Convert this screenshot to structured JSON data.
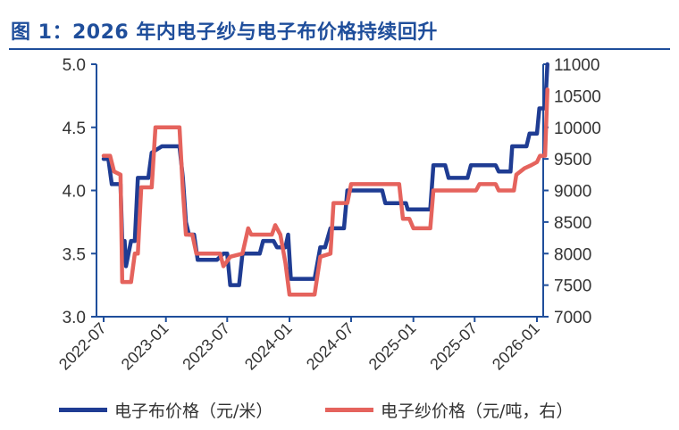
{
  "title": "图 1：2026 年内电子纱与电子布价格持续回升",
  "chart_data": {
    "type": "line",
    "x_axis": {
      "ticks": [
        "2022-07",
        "2023-01",
        "2023-07",
        "2024-01",
        "2024-07",
        "2025-01",
        "2025-07",
        "2026-01"
      ],
      "range": [
        "2022-07",
        "2026-01"
      ]
    },
    "y_left": {
      "range": [
        3.0,
        5.0
      ],
      "ticks": [
        "3.0",
        "3.5",
        "4.0",
        "4.5",
        "5.0"
      ]
    },
    "y_right": {
      "range": [
        7000,
        11000
      ],
      "ticks": [
        "7000",
        "7500",
        "8000",
        "8500",
        "9000",
        "9500",
        "10000",
        "10500",
        "11000"
      ]
    },
    "grid": false,
    "legend_position": "bottom",
    "series": [
      {
        "name": "电子布价格（元/米）",
        "axis": "left",
        "color": "#1f3c93",
        "points": [
          [
            "2022-07-01",
            4.25
          ],
          [
            "2022-07-15",
            4.25
          ],
          [
            "2022-07-25",
            4.05
          ],
          [
            "2022-08-20",
            4.05
          ],
          [
            "2022-08-25",
            3.6
          ],
          [
            "2022-09-01",
            3.6
          ],
          [
            "2022-09-05",
            3.4
          ],
          [
            "2022-09-20",
            3.6
          ],
          [
            "2022-10-01",
            3.6
          ],
          [
            "2022-10-10",
            4.1
          ],
          [
            "2022-11-10",
            4.1
          ],
          [
            "2022-11-20",
            4.3
          ],
          [
            "2022-12-20",
            4.35
          ],
          [
            "2023-02-10",
            4.35
          ],
          [
            "2023-02-20",
            4.1
          ],
          [
            "2023-03-01",
            3.75
          ],
          [
            "2023-03-10",
            3.65
          ],
          [
            "2023-03-25",
            3.65
          ],
          [
            "2023-04-05",
            3.45
          ],
          [
            "2023-06-01",
            3.45
          ],
          [
            "2023-06-20",
            3.5
          ],
          [
            "2023-07-01",
            3.5
          ],
          [
            "2023-07-10",
            3.25
          ],
          [
            "2023-08-05",
            3.25
          ],
          [
            "2023-08-15",
            3.5
          ],
          [
            "2023-10-05",
            3.5
          ],
          [
            "2023-10-15",
            3.6
          ],
          [
            "2023-11-15",
            3.6
          ],
          [
            "2023-11-25",
            3.55
          ],
          [
            "2023-12-20",
            3.55
          ],
          [
            "2023-12-28",
            3.65
          ],
          [
            "2024-01-05",
            3.3
          ],
          [
            "2024-03-15",
            3.3
          ],
          [
            "2024-04-01",
            3.55
          ],
          [
            "2024-04-15",
            3.55
          ],
          [
            "2024-05-01",
            3.7
          ],
          [
            "2024-06-10",
            3.7
          ],
          [
            "2024-06-20",
            4.0
          ],
          [
            "2024-10-01",
            4.0
          ],
          [
            "2024-10-10",
            3.9
          ],
          [
            "2024-12-10",
            3.9
          ],
          [
            "2024-12-15",
            3.85
          ],
          [
            "2025-02-20",
            3.85
          ],
          [
            "2025-03-01",
            4.2
          ],
          [
            "2025-04-05",
            4.2
          ],
          [
            "2025-04-15",
            4.1
          ],
          [
            "2025-06-10",
            4.1
          ],
          [
            "2025-06-20",
            4.2
          ],
          [
            "2025-09-01",
            4.2
          ],
          [
            "2025-09-10",
            4.15
          ],
          [
            "2025-10-15",
            4.15
          ],
          [
            "2025-10-20",
            4.35
          ],
          [
            "2025-12-01",
            4.35
          ],
          [
            "2025-12-10",
            4.45
          ],
          [
            "2026-01-01",
            4.45
          ],
          [
            "2026-01-08",
            4.65
          ],
          [
            "2026-01-25",
            4.65
          ],
          [
            "2026-02-01",
            5.0
          ]
        ]
      },
      {
        "name": "电子纱价格（元/吨，右）",
        "axis": "right",
        "color": "#e5635d",
        "points": [
          [
            "2022-07-01",
            9550
          ],
          [
            "2022-07-20",
            9550
          ],
          [
            "2022-08-01",
            9300
          ],
          [
            "2022-08-20",
            9250
          ],
          [
            "2022-08-25",
            7550
          ],
          [
            "2022-09-20",
            7550
          ],
          [
            "2022-10-01",
            8000
          ],
          [
            "2022-10-10",
            8000
          ],
          [
            "2022-10-20",
            9050
          ],
          [
            "2022-11-20",
            9050
          ],
          [
            "2022-12-01",
            10000
          ],
          [
            "2023-02-10",
            10000
          ],
          [
            "2023-02-20",
            9000
          ],
          [
            "2023-03-01",
            8300
          ],
          [
            "2023-03-20",
            8300
          ],
          [
            "2023-04-01",
            8000
          ],
          [
            "2023-06-10",
            8000
          ],
          [
            "2023-06-20",
            7800
          ],
          [
            "2023-07-10",
            7950
          ],
          [
            "2023-08-15",
            8000
          ],
          [
            "2023-09-01",
            8400
          ],
          [
            "2023-09-10",
            8300
          ],
          [
            "2023-11-10",
            8300
          ],
          [
            "2023-11-20",
            8450
          ],
          [
            "2023-12-05",
            8300
          ],
          [
            "2023-12-20",
            7850
          ],
          [
            "2024-01-01",
            7350
          ],
          [
            "2024-03-15",
            7350
          ],
          [
            "2024-04-01",
            7950
          ],
          [
            "2024-05-01",
            8000
          ],
          [
            "2024-05-10",
            8800
          ],
          [
            "2024-06-20",
            8800
          ],
          [
            "2024-07-01",
            9100
          ],
          [
            "2024-11-20",
            9100
          ],
          [
            "2024-12-01",
            8550
          ],
          [
            "2024-12-20",
            8550
          ],
          [
            "2025-01-01",
            8400
          ],
          [
            "2025-02-20",
            8400
          ],
          [
            "2025-03-01",
            9000
          ],
          [
            "2025-07-05",
            9000
          ],
          [
            "2025-07-15",
            9100
          ],
          [
            "2025-09-01",
            9100
          ],
          [
            "2025-09-10",
            9000
          ],
          [
            "2025-10-25",
            9000
          ],
          [
            "2025-11-01",
            9250
          ],
          [
            "2025-11-25",
            9350
          ],
          [
            "2025-12-15",
            9400
          ],
          [
            "2026-01-01",
            9450
          ],
          [
            "2026-01-10",
            9550
          ],
          [
            "2026-01-25",
            9550
          ],
          [
            "2026-02-01",
            10600
          ]
        ]
      }
    ]
  }
}
